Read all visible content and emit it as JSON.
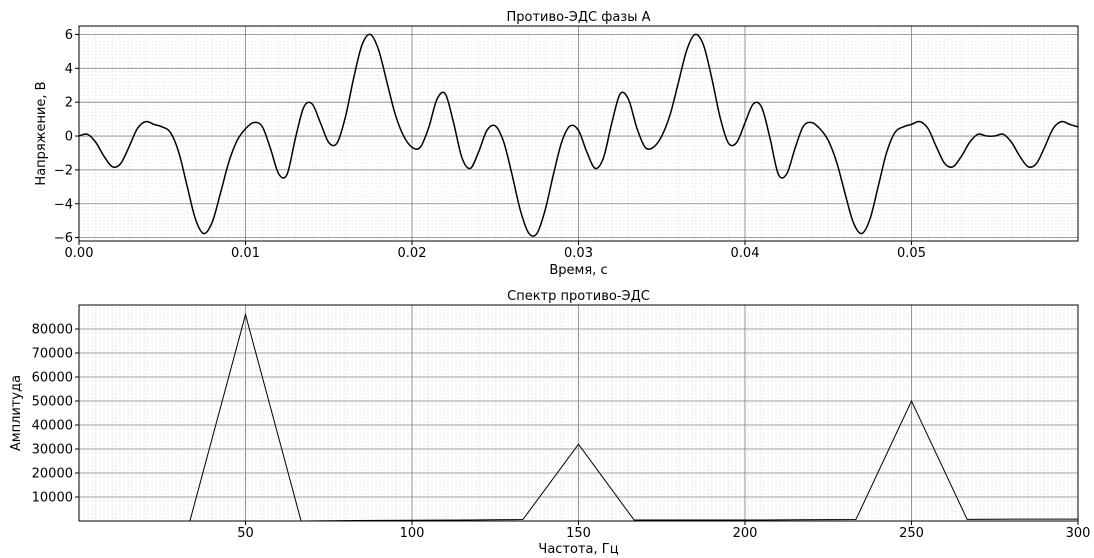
{
  "chart_data": [
    {
      "type": "line",
      "title": "Противо-ЭДС фазы А",
      "xlabel": "Время, с",
      "ylabel": "Напряжение, В",
      "xlim": [
        0,
        0.06
      ],
      "ylim": [
        -6.2,
        6.5
      ],
      "grid": true,
      "x_ticks": [
        "0.00",
        "0.01",
        "0.02",
        "0.03",
        "0.04",
        "0.05"
      ],
      "y_ticks": [
        "−6",
        "−4",
        "−2",
        "0",
        "2",
        "4",
        "6"
      ],
      "series": [
        {
          "x": [
            0.0,
            0.0005,
            0.001,
            0.0015,
            0.002,
            0.0025,
            0.003,
            0.0035,
            0.004,
            0.0045,
            0.005,
            0.0055,
            0.006,
            0.0065,
            0.007,
            0.0075,
            0.008,
            0.0085,
            0.009,
            0.0095,
            0.01,
            0.0105,
            0.011,
            0.0115,
            0.012,
            0.0125,
            0.013,
            0.0135,
            0.014,
            0.0145,
            0.015,
            0.0155,
            0.016,
            0.0165,
            0.017,
            0.0175,
            0.018,
            0.0185,
            0.019,
            0.0195,
            0.02,
            0.0205,
            0.021,
            0.0215,
            0.022,
            0.0225,
            0.023,
            0.0235,
            0.024,
            0.0245,
            0.025,
            0.0255,
            0.026,
            0.0265,
            0.027,
            0.0275,
            0.028,
            0.0285,
            0.029,
            0.0295,
            0.03,
            0.0305,
            0.031,
            0.0315,
            0.032,
            0.0325,
            0.033,
            0.0335,
            0.034,
            0.0345,
            0.035,
            0.0355,
            0.036,
            0.0365,
            0.037,
            0.0375,
            0.038,
            0.0385,
            0.039,
            0.0395,
            0.04,
            0.0405,
            0.041,
            0.0415,
            0.042,
            0.0425,
            0.043,
            0.0435,
            0.044,
            0.0445,
            0.045,
            0.0455,
            0.046,
            0.0465,
            0.047,
            0.0475,
            0.048,
            0.0485,
            0.049,
            0.0495,
            0.05,
            0.0505,
            0.051,
            0.0515,
            0.052,
            0.0525,
            0.053,
            0.0535,
            0.054,
            0.0545,
            0.055,
            0.0555,
            0.056,
            0.0565,
            0.057,
            0.0575,
            0.058,
            0.0585,
            0.059,
            0.0595,
            0.06
          ],
          "y": [
            0.0,
            0.11,
            -0.36,
            -1.19,
            -1.81,
            -1.63,
            -0.65,
            0.43,
            0.85,
            0.69,
            0.54,
            0.2,
            -0.99,
            -2.98,
            -4.92,
            -5.76,
            -5.09,
            -3.36,
            -1.53,
            -0.26,
            0.43,
            0.8,
            0.57,
            -0.74,
            -2.25,
            -2.25,
            -0.12,
            1.7,
            1.9,
            0.78,
            -0.38,
            -0.41,
            1.12,
            3.44,
            5.39,
            6.0,
            5.07,
            3.16,
            1.26,
            0.0,
            -0.66,
            -0.66,
            0.49,
            2.17,
            2.49,
            0.77,
            -1.28,
            -1.91,
            -0.94,
            0.33,
            0.6,
            -0.33,
            -2.24,
            -4.36,
            -5.72,
            -5.76,
            -4.36,
            -2.24,
            -0.33,
            0.6,
            0.33,
            -0.94,
            -1.91,
            -1.28,
            0.77,
            2.49,
            2.17,
            0.49,
            -0.66,
            -0.66,
            0.0,
            1.26,
            3.16,
            5.07,
            6.0,
            5.39,
            3.44,
            1.12,
            -0.41,
            -0.38,
            0.78,
            1.9,
            1.7,
            -0.12,
            -2.25,
            -2.25,
            -0.74,
            0.57,
            0.8,
            0.43,
            -0.26,
            -1.53,
            -3.36,
            -5.09,
            -5.76,
            -4.92,
            -2.98,
            -0.99,
            0.2,
            0.54,
            0.69,
            0.85,
            0.43,
            -0.65,
            -1.63,
            -1.81,
            -1.19,
            -0.36,
            0.11,
            0.0,
            0.0,
            0.11,
            -0.36,
            -1.19,
            -1.81,
            -1.63,
            -0.65,
            0.43,
            0.85,
            0.69,
            0.54
          ]
        }
      ]
    },
    {
      "type": "line",
      "title": "Спектр противо-ЭДС",
      "xlabel": "Частота, Гц",
      "ylabel": "Амплитуда",
      "xlim": [
        0,
        300
      ],
      "ylim": [
        0,
        90000
      ],
      "grid": true,
      "x_ticks": [
        "50",
        "100",
        "150",
        "200",
        "250",
        "300"
      ],
      "y_ticks": [
        "10000",
        "20000",
        "30000",
        "40000",
        "50000",
        "60000",
        "70000",
        "80000"
      ],
      "series": [
        {
          "x": [
            33.3,
            50.0,
            66.7,
            83.3,
            100.0,
            116.7,
            133.3,
            150.0,
            166.7,
            183.3,
            200.0,
            216.7,
            233.3,
            250.0,
            266.7,
            283.3,
            300.0
          ],
          "y": [
            0,
            86000,
            0,
            200,
            300,
            400,
            600,
            32000,
            400,
            400,
            400,
            500,
            600,
            50000,
            700,
            800,
            800
          ]
        }
      ]
    }
  ]
}
